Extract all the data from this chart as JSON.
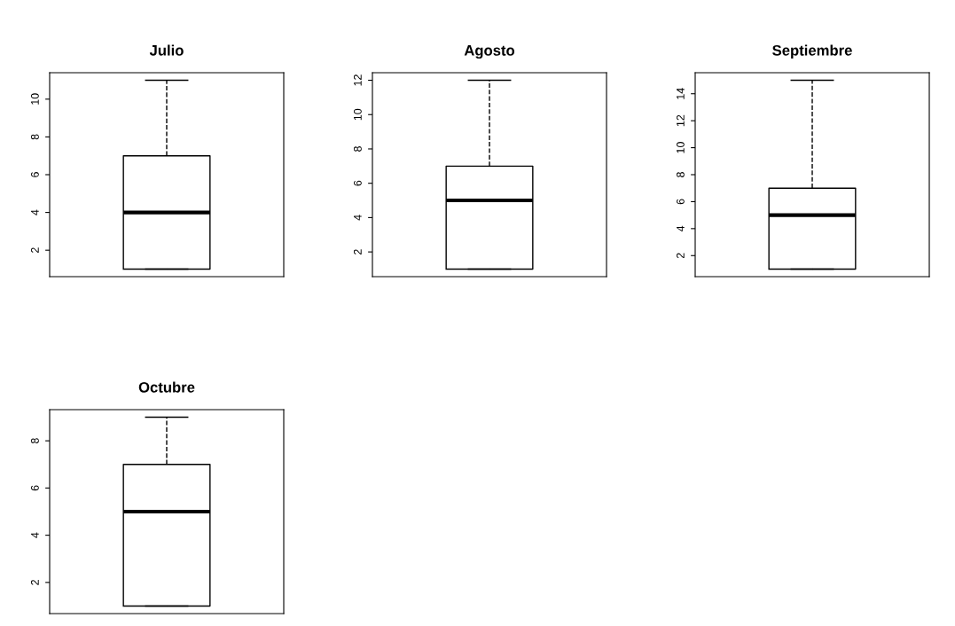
{
  "chart_data": [
    {
      "type": "box",
      "title": "Julio",
      "categories": [
        null
      ],
      "boxes": [
        {
          "low": 1,
          "q1": 1,
          "median": 4,
          "q3": 7,
          "high": 11
        }
      ],
      "ylim": [
        0.6,
        11.4
      ],
      "yticks": [
        2,
        4,
        6,
        8,
        10
      ],
      "tick_labels": "y",
      "grid": false
    },
    {
      "type": "box",
      "title": "Agosto",
      "categories": [
        null
      ],
      "boxes": [
        {
          "low": 1,
          "q1": 1,
          "median": 5,
          "q3": 7,
          "high": 12
        }
      ],
      "ylim": [
        0.56,
        12.44
      ],
      "yticks": [
        2,
        4,
        6,
        8,
        10,
        12
      ],
      "tick_labels": "y",
      "grid": false
    },
    {
      "type": "box",
      "title": "Septiembre",
      "categories": [
        null
      ],
      "boxes": [
        {
          "low": 1,
          "q1": 1,
          "median": 5,
          "q3": 7,
          "high": 15
        }
      ],
      "ylim": [
        0.44,
        15.56
      ],
      "yticks": [
        2,
        4,
        6,
        8,
        10,
        12,
        14
      ],
      "tick_labels": "y",
      "grid": false
    },
    {
      "type": "box",
      "title": "Octubre",
      "categories": [
        null
      ],
      "boxes": [
        {
          "low": 1,
          "q1": 1,
          "median": 5,
          "q3": 7,
          "high": 9
        }
      ],
      "ylim": [
        0.68,
        9.32
      ],
      "yticks": [
        2,
        4,
        6,
        8
      ],
      "tick_labels": "y",
      "grid": false
    }
  ]
}
